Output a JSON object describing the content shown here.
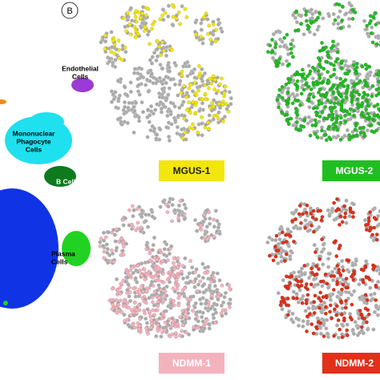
{
  "panel_label": "B",
  "clusters": [
    {
      "lines": [
        "Endothelial",
        "Cells"
      ]
    },
    {
      "lines": [
        "Mononuclear",
        "Phagocyte",
        "Cells"
      ]
    },
    {
      "lines": [
        "B Cells"
      ]
    },
    {
      "lines": [
        "Plasma",
        "Cells"
      ]
    }
  ],
  "samples": [
    {
      "name": "MGUS-1",
      "color": "#f2e60c"
    },
    {
      "name": "MGUS-2",
      "color": "#22bd22"
    },
    {
      "name": "NDMM-1",
      "color": "#f3b3bd"
    },
    {
      "name": "NDMM-2",
      "color": "#e2301a"
    }
  ]
}
